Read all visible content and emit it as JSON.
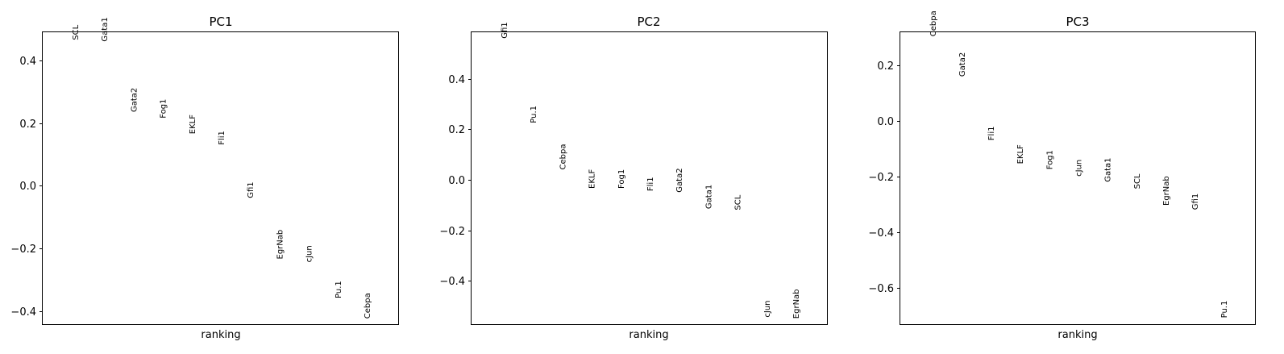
{
  "chart_data": [
    {
      "type": "scatter",
      "title": "PC1",
      "xlabel": "ranking",
      "ylabel": "",
      "ylim": [
        -0.445,
        0.49
      ],
      "yticks": [
        -0.4,
        -0.2,
        0.0,
        0.2,
        0.4
      ],
      "ytick_labels": [
        "−0.4",
        "−0.2",
        "0.0",
        "0.2",
        "0.4"
      ],
      "points": [
        {
          "rank": 1,
          "gene": "SCL",
          "value": 0.465
        },
        {
          "rank": 2,
          "gene": "Gata1",
          "value": 0.46
        },
        {
          "rank": 3,
          "gene": "Gata2",
          "value": 0.235
        },
        {
          "rank": 4,
          "gene": "Fog1",
          "value": 0.215
        },
        {
          "rank": 5,
          "gene": "EKLF",
          "value": 0.165
        },
        {
          "rank": 6,
          "gene": "Fli1",
          "value": 0.13
        },
        {
          "rank": 7,
          "gene": "Gfi1",
          "value": -0.04
        },
        {
          "rank": 8,
          "gene": "EgrNab",
          "value": -0.235
        },
        {
          "rank": 9,
          "gene": "cJun",
          "value": -0.245
        },
        {
          "rank": 10,
          "gene": "Pu.1",
          "value": -0.36
        },
        {
          "rank": 11,
          "gene": "Cebpa",
          "value": -0.425
        }
      ]
    },
    {
      "type": "scatter",
      "title": "PC2",
      "xlabel": "ranking",
      "ylabel": "",
      "ylim": [
        -0.575,
        0.585
      ],
      "yticks": [
        -0.4,
        -0.2,
        0.0,
        0.2,
        0.4
      ],
      "ytick_labels": [
        "−0.4",
        "−0.2",
        "0.0",
        "0.2",
        "0.4"
      ],
      "points": [
        {
          "rank": 1,
          "gene": "Gfi1",
          "value": 0.56
        },
        {
          "rank": 2,
          "gene": "Pu.1",
          "value": 0.225
        },
        {
          "rank": 3,
          "gene": "Cebpa",
          "value": 0.04
        },
        {
          "rank": 4,
          "gene": "EKLF",
          "value": -0.035
        },
        {
          "rank": 5,
          "gene": "Fog1",
          "value": -0.035
        },
        {
          "rank": 6,
          "gene": "Fli1",
          "value": -0.045
        },
        {
          "rank": 7,
          "gene": "Gata2",
          "value": -0.05
        },
        {
          "rank": 8,
          "gene": "Gata1",
          "value": -0.115
        },
        {
          "rank": 9,
          "gene": "SCL",
          "value": -0.12
        },
        {
          "rank": 10,
          "gene": "cJun",
          "value": -0.545
        },
        {
          "rank": 11,
          "gene": "EgrNab",
          "value": -0.55
        }
      ]
    },
    {
      "type": "scatter",
      "title": "PC3",
      "xlabel": "ranking",
      "ylabel": "",
      "ylim": [
        -0.735,
        0.32
      ],
      "yticks": [
        -0.6,
        -0.4,
        -0.2,
        0.0,
        0.2
      ],
      "ytick_labels": [
        "−0.6",
        "−0.4",
        "−0.2",
        "0.0",
        "0.2"
      ],
      "points": [
        {
          "rank": 1,
          "gene": "Cebpa",
          "value": 0.305
        },
        {
          "rank": 2,
          "gene": "Gata2",
          "value": 0.16
        },
        {
          "rank": 3,
          "gene": "Fli1",
          "value": -0.07
        },
        {
          "rank": 4,
          "gene": "EKLF",
          "value": -0.155
        },
        {
          "rank": 5,
          "gene": "Fog1",
          "value": -0.175
        },
        {
          "rank": 6,
          "gene": "cJun",
          "value": -0.2
        },
        {
          "rank": 7,
          "gene": "Gata1",
          "value": -0.22
        },
        {
          "rank": 8,
          "gene": "SCL",
          "value": -0.245
        },
        {
          "rank": 9,
          "gene": "EgrNab",
          "value": -0.305
        },
        {
          "rank": 10,
          "gene": "Gfi1",
          "value": -0.32
        },
        {
          "rank": 11,
          "gene": "Pu.1",
          "value": -0.71
        }
      ]
    }
  ]
}
